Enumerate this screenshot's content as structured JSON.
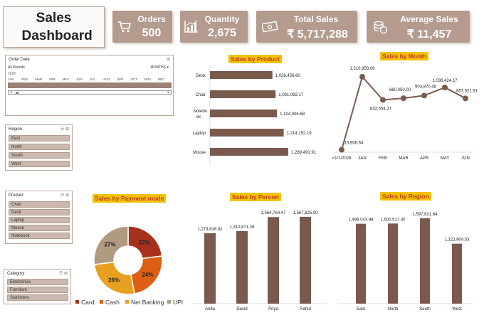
{
  "dashboard_title": "Sales Dashboard",
  "kpis": [
    {
      "label": "Orders",
      "value": "500",
      "icon": "cart-icon"
    },
    {
      "label": "Quantity",
      "value": "2,675",
      "icon": "bar-chart-icon"
    },
    {
      "label": "Total Sales",
      "value": "₹ 5,717,288",
      "icon": "money-icon"
    },
    {
      "label": "Average Sales",
      "value": "₹ 11,457",
      "icon": "coins-icon"
    }
  ],
  "timeline": {
    "title": "Order Date",
    "period": "All Periods",
    "unit": "MONTHS ▾",
    "year": "2026",
    "months": [
      "JAN",
      "FEB",
      "MAR",
      "APR",
      "MAY",
      "JUN",
      "JUL",
      "AUG",
      "SEP",
      "OCT",
      "NOV",
      "DEC"
    ]
  },
  "slicers": {
    "region": {
      "title": "Region",
      "items": [
        "East",
        "North",
        "South",
        "West"
      ]
    },
    "product": {
      "title": "Product",
      "items": [
        "Chair",
        "Desk",
        "Laptop",
        "Mouse",
        "Notebook"
      ]
    },
    "category": {
      "title": "Category",
      "items": [
        "Electronics",
        "Furniture",
        "Stationery"
      ]
    }
  },
  "colors": {
    "bar": "#7b5a4e",
    "kpi": "#b49b8e",
    "title_bg": "#f2c200",
    "title_fg": "#c0392b"
  },
  "chart_data": [
    {
      "type": "bar",
      "orientation": "horizontal",
      "title": "Sales by Product",
      "categories": [
        "Desk",
        "Chair",
        "Notebo ok",
        "Laptop",
        "Mouse"
      ],
      "values": [
        1028456.6,
        1081092.17,
        1104094.68,
        1214152.19,
        1289491.91
      ],
      "value_labels": [
        "1,028,456.60",
        "1,081,092.17",
        "1,104,094.68",
        "1,214,152.19",
        "1,289,491.91"
      ]
    },
    {
      "type": "line",
      "title": "Sales by Month",
      "categories": [
        "<1/1/2026",
        "JAN",
        "FEB",
        "MAR",
        "APR",
        "MAY",
        "JUN"
      ],
      "values": [
        15908.64,
        1210958.08,
        832554.27,
        860050.0,
        903870.48,
        1036424.17,
        857521.91
      ],
      "value_labels": [
        "15,908.64",
        "1,210,958.08",
        "832,554.27",
        "860,050.00",
        "903,870.48",
        "1,036,424.17",
        "857,521.91"
      ]
    },
    {
      "type": "pie",
      "title": "Sales by Payment mode",
      "categories": [
        "Card",
        "Cash",
        "Net Banking",
        "UPI"
      ],
      "values": [
        23,
        24,
        26,
        27
      ],
      "value_labels": [
        "23%",
        "24%",
        "26%",
        "27%"
      ],
      "colors": [
        "#a8311c",
        "#dc5f14",
        "#e8a020",
        "#b09a80"
      ]
    },
    {
      "type": "bar",
      "title": "Sales by Person",
      "categories": [
        "Anita",
        "David",
        "Priya",
        "Rahul"
      ],
      "values": [
        1273826.82,
        1310871.26,
        1564764.47,
        1567825.0
      ],
      "value_labels": [
        "1,273,826.82",
        "1,310,871.26",
        "1,564,764.47",
        "1,567,825.00"
      ]
    },
    {
      "type": "bar",
      "title": "Sales by Region",
      "categories": [
        "East",
        "North",
        "South",
        "West"
      ],
      "values": [
        1496043.98,
        1500517.4,
        1597821.64,
        1122904.53
      ],
      "value_labels": [
        "1,496,043.98",
        "1,500,517.40",
        "1,597,821.64",
        "1,122,904.53"
      ]
    }
  ]
}
